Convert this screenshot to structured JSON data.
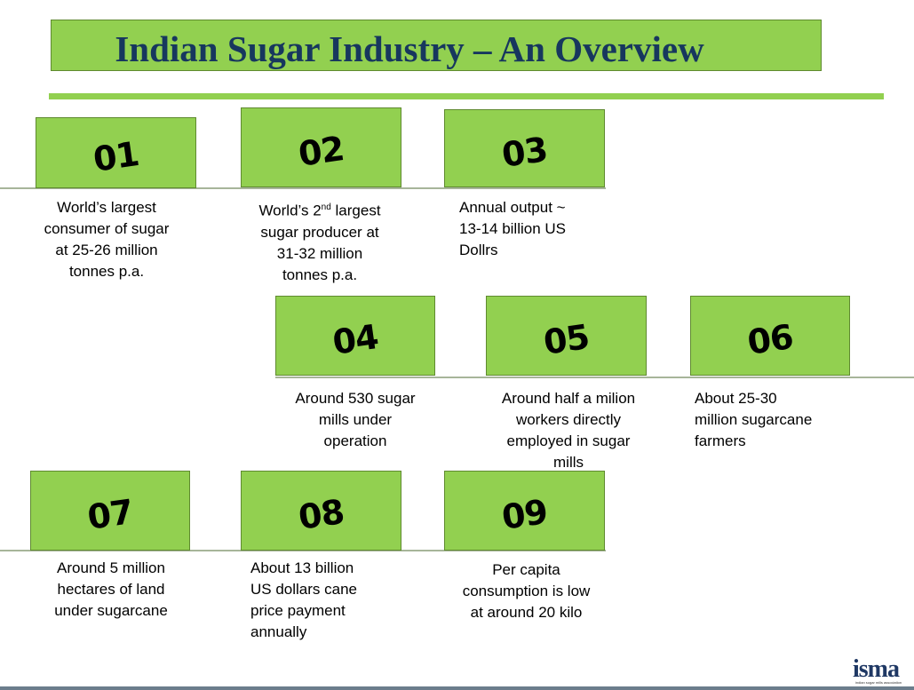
{
  "header": {
    "title": "Indian Sugar Industry – An Overview"
  },
  "items": [
    {
      "number": "01",
      "lines": [
        "World’s largest",
        "consumer of sugar",
        "at 25-26 million",
        "tonnes p.a."
      ]
    },
    {
      "number": "02",
      "lines": [
        {
          "text": "World’s 2",
          "sup": "nd",
          "tail": "largest"
        },
        "sugar producer at",
        "31-32 million",
        "tonnes p.a."
      ]
    },
    {
      "number": "03",
      "lines": [
        "Annual output ~",
        "13-14 billion US",
        "Dollrs"
      ]
    },
    {
      "number": "04",
      "lines": [
        "Around 530 sugar",
        "mills under",
        "operation"
      ]
    },
    {
      "number": "05",
      "lines": [
        "Around half a milion",
        "workers directly",
        "employed in sugar",
        "mills"
      ]
    },
    {
      "number": "06",
      "lines": [
        "About 25-30",
        "million sugarcane",
        "farmers"
      ]
    },
    {
      "number": "07",
      "lines": [
        "Around 5 million",
        "hectares of land",
        "under sugarcane"
      ]
    },
    {
      "number": "08",
      "lines": [
        "About 13 billion",
        "US dollars cane",
        "price payment",
        "annually"
      ]
    },
    {
      "number": "09",
      "lines": [
        "Per capita",
        "consumption is low",
        "at around 20 kilo"
      ]
    }
  ],
  "logo": {
    "name": "isma",
    "tagline": "indian sugar mills association"
  }
}
